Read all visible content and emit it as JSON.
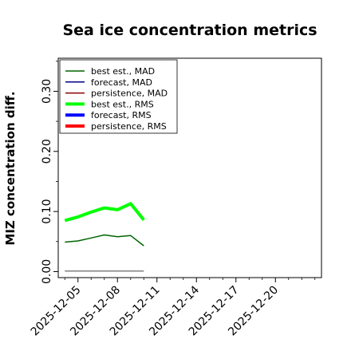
{
  "chart_data": {
    "type": "line",
    "title": "Sea ice concentration metrics",
    "xlabel": "",
    "ylabel": "MIZ concentration diff.",
    "xlim": [
      "2025-12-03T12:00",
      "2025-12-23T12:00"
    ],
    "ylim": [
      -0.01,
      0.355
    ],
    "grid": false,
    "legend_position": "top-left",
    "x_ticks": [
      {
        "label": "2025-12-05",
        "color": "#000000"
      },
      {
        "label": "2025-12-08",
        "color": "#000000"
      },
      {
        "label": "2025-12-11",
        "color": "#228B22"
      },
      {
        "label": "2025-12-14",
        "color": "#000000"
      },
      {
        "label": "2025-12-17",
        "color": "#000000"
      },
      {
        "label": "2025-12-20",
        "color": "#000000"
      }
    ],
    "y_ticks": [
      "0.00",
      "0.10",
      "0.20",
      "0.30"
    ],
    "x": [
      "2025-12-04",
      "2025-12-05",
      "2025-12-06",
      "2025-12-07",
      "2025-12-08",
      "2025-12-09",
      "2025-12-10"
    ],
    "series": [
      {
        "name": "best est., MAD",
        "color": "#006400",
        "width": 1.5,
        "values": [
          0.049,
          0.051,
          0.056,
          0.061,
          0.058,
          0.06,
          0.043
        ]
      },
      {
        "name": "forecast,  MAD",
        "color": "#00008B",
        "width": 1.5,
        "values": [
          null,
          null,
          null,
          null,
          null,
          null,
          null
        ]
      },
      {
        "name": "persistence, MAD",
        "color": "#8B0000",
        "width": 1.5,
        "values": [
          0.001,
          0.001,
          0.001,
          0.001,
          0.001,
          0.001,
          0.001
        ]
      },
      {
        "name": "best est., RMS",
        "color": "#00FF00",
        "width": 4,
        "values": [
          0.085,
          0.091,
          0.099,
          0.106,
          0.103,
          0.113,
          0.086
        ]
      },
      {
        "name": "forecast,  RMS",
        "color": "#0000FF",
        "width": 4,
        "values": [
          null,
          null,
          null,
          null,
          null,
          null,
          null
        ]
      },
      {
        "name": "persistence, RMS",
        "color": "#FF0000",
        "width": 4,
        "values": [
          null,
          null,
          null,
          null,
          null,
          null,
          null
        ]
      }
    ],
    "persistence_line_color": "#808080"
  }
}
